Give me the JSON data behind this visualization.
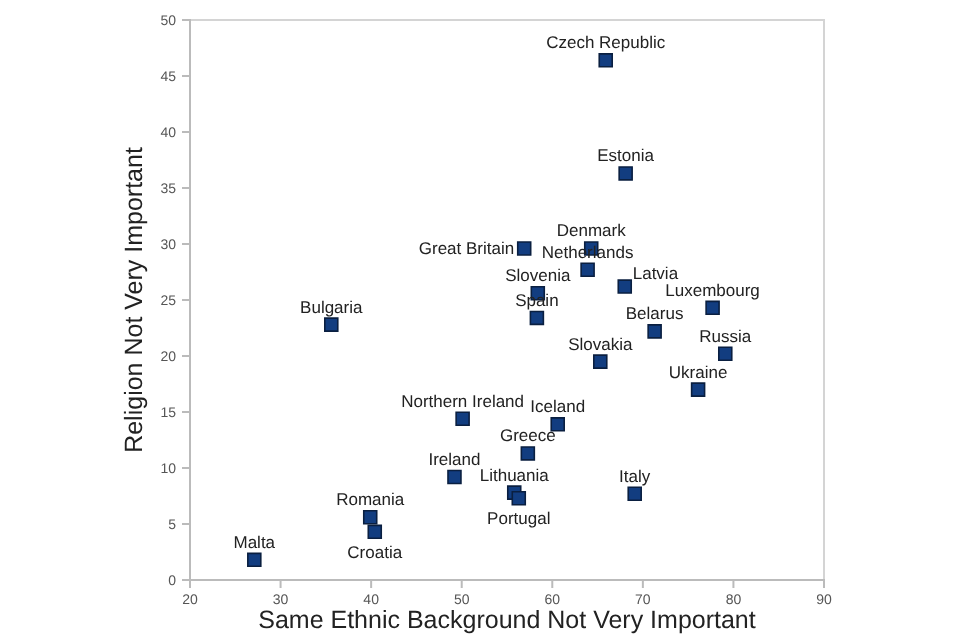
{
  "chart_data": {
    "type": "scatter",
    "xlabel": "Same Ethnic Background Not Very Important",
    "ylabel": "Religion Not Very Important",
    "xlim": [
      20,
      90
    ],
    "xticks": [
      20,
      30,
      40,
      50,
      60,
      70,
      80,
      90
    ],
    "ylim": [
      0,
      50
    ],
    "yticks": [
      0,
      5,
      10,
      15,
      20,
      25,
      30,
      35,
      40,
      45,
      50
    ],
    "grid": false,
    "marker": "square",
    "series": [
      {
        "color": "#123d80",
        "x": [
          65.9,
          68.1,
          64.3,
          63.9,
          68.0,
          56.9,
          58.4,
          58.3,
          35.6,
          77.7,
          71.3,
          79.1,
          65.3,
          76.1,
          50.1,
          60.6,
          57.3,
          49.2,
          55.8,
          56.3,
          69.1,
          39.9,
          40.4,
          27.1
        ],
        "values": [
          46.4,
          36.3,
          29.6,
          27.7,
          26.2,
          29.6,
          25.6,
          23.4,
          22.8,
          24.3,
          22.2,
          20.2,
          19.5,
          17.0,
          14.4,
          13.9,
          11.3,
          9.2,
          7.8,
          7.3,
          7.7,
          5.6,
          4.3,
          1.8
        ]
      }
    ],
    "annotations": [
      {
        "text": "Czech Republic",
        "x": 65.9,
        "y": 46.4
      },
      {
        "text": "Estonia",
        "x": 68.1,
        "y": 36.3
      },
      {
        "text": "Denmark",
        "x": 64.3,
        "y": 29.6
      },
      {
        "text": "Netherlands",
        "x": 63.9,
        "y": 27.7
      },
      {
        "text": "Latvia",
        "x": 68.0,
        "y": 26.2
      },
      {
        "text": "Great Britain",
        "x": 56.9,
        "y": 29.6
      },
      {
        "text": "Slovenia",
        "x": 58.4,
        "y": 25.6
      },
      {
        "text": "Spain",
        "x": 58.3,
        "y": 23.4
      },
      {
        "text": "Bulgaria",
        "x": 35.6,
        "y": 22.8
      },
      {
        "text": "Luxembourg",
        "x": 77.7,
        "y": 24.3
      },
      {
        "text": "Belarus",
        "x": 71.3,
        "y": 22.2
      },
      {
        "text": "Russia",
        "x": 79.1,
        "y": 20.2
      },
      {
        "text": "Slovakia",
        "x": 65.3,
        "y": 19.5
      },
      {
        "text": "Ukraine",
        "x": 76.1,
        "y": 17.0
      },
      {
        "text": "Northern Ireland",
        "x": 50.1,
        "y": 14.4
      },
      {
        "text": "Iceland",
        "x": 60.6,
        "y": 13.9
      },
      {
        "text": "Greece",
        "x": 57.3,
        "y": 11.3
      },
      {
        "text": "Ireland",
        "x": 49.2,
        "y": 9.2
      },
      {
        "text": "Lithuania",
        "x": 55.8,
        "y": 7.8
      },
      {
        "text": "Portugal",
        "x": 56.3,
        "y": 7.3
      },
      {
        "text": "Italy",
        "x": 69.1,
        "y": 7.7
      },
      {
        "text": "Romania",
        "x": 39.9,
        "y": 5.6
      },
      {
        "text": "Croatia",
        "x": 40.4,
        "y": 4.3
      },
      {
        "text": "Malta",
        "x": 27.1,
        "y": 1.8
      }
    ]
  }
}
